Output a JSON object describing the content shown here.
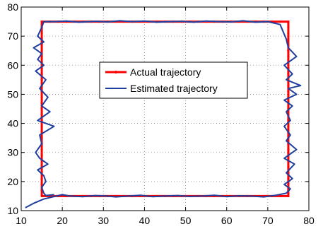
{
  "chart_data": {
    "type": "line",
    "xlim": [
      10,
      80
    ],
    "ylim": [
      10,
      80
    ],
    "xticks": [
      10,
      20,
      30,
      40,
      50,
      60,
      70,
      80
    ],
    "yticks": [
      10,
      20,
      30,
      40,
      50,
      60,
      70,
      80
    ],
    "grid": true,
    "legend_position": "center",
    "series": [
      {
        "name": "Actual trajectory",
        "color": "#ff0000",
        "marker": "dot",
        "x": [
          15,
          75,
          75,
          15,
          15
        ],
        "y": [
          15,
          15,
          75,
          75,
          15
        ]
      },
      {
        "name": "Estimated trajectory",
        "color": "#1f3fa0",
        "x": [
          11,
          13,
          15.5,
          20,
          22,
          25,
          28,
          31,
          33,
          36,
          39,
          42,
          45,
          48,
          51,
          54,
          57,
          60,
          63,
          66,
          69,
          72,
          74.5,
          75.5,
          74,
          76,
          74.5,
          76.5,
          74,
          77,
          74.5,
          75.5,
          74,
          75.5,
          74.5,
          76,
          74,
          77,
          75,
          78,
          74.5,
          76,
          74,
          77,
          75,
          74.5,
          73,
          70,
          67,
          64,
          61,
          58,
          55,
          52,
          49,
          46,
          43,
          40,
          37,
          34,
          31,
          28,
          24,
          21,
          18,
          15.5,
          15,
          14,
          15.5,
          13,
          15,
          14,
          15.5,
          13.5,
          16,
          14.5,
          16.5,
          15,
          17,
          14,
          18,
          14.5,
          15,
          13.5,
          14.5,
          16.5,
          14,
          15.5,
          16,
          15,
          15.5,
          16,
          18
        ],
        "y": [
          11,
          12.5,
          14,
          15.5,
          15,
          14.8,
          15.2,
          15,
          14.7,
          15,
          15.3,
          14.8,
          15,
          15.2,
          14.9,
          15,
          15.3,
          14.8,
          15.1,
          15,
          14.7,
          15.3,
          16,
          17.5,
          19,
          21,
          23,
          26,
          28,
          31,
          34,
          36,
          39,
          41,
          44,
          46,
          48,
          50,
          52,
          53,
          55,
          57,
          60,
          63,
          66,
          69,
          74,
          75,
          74.8,
          75.3,
          74.9,
          75,
          75.2,
          74.8,
          75.1,
          75,
          74.8,
          75.2,
          75,
          75.3,
          74.9,
          75.1,
          74.8,
          75.2,
          75,
          75,
          73,
          70,
          68,
          66,
          64,
          62,
          60,
          58,
          55,
          52,
          49,
          46,
          44,
          41,
          39,
          36,
          33,
          30,
          28,
          26,
          24,
          22,
          20,
          18,
          16,
          15.2,
          15.5
        ]
      }
    ]
  }
}
